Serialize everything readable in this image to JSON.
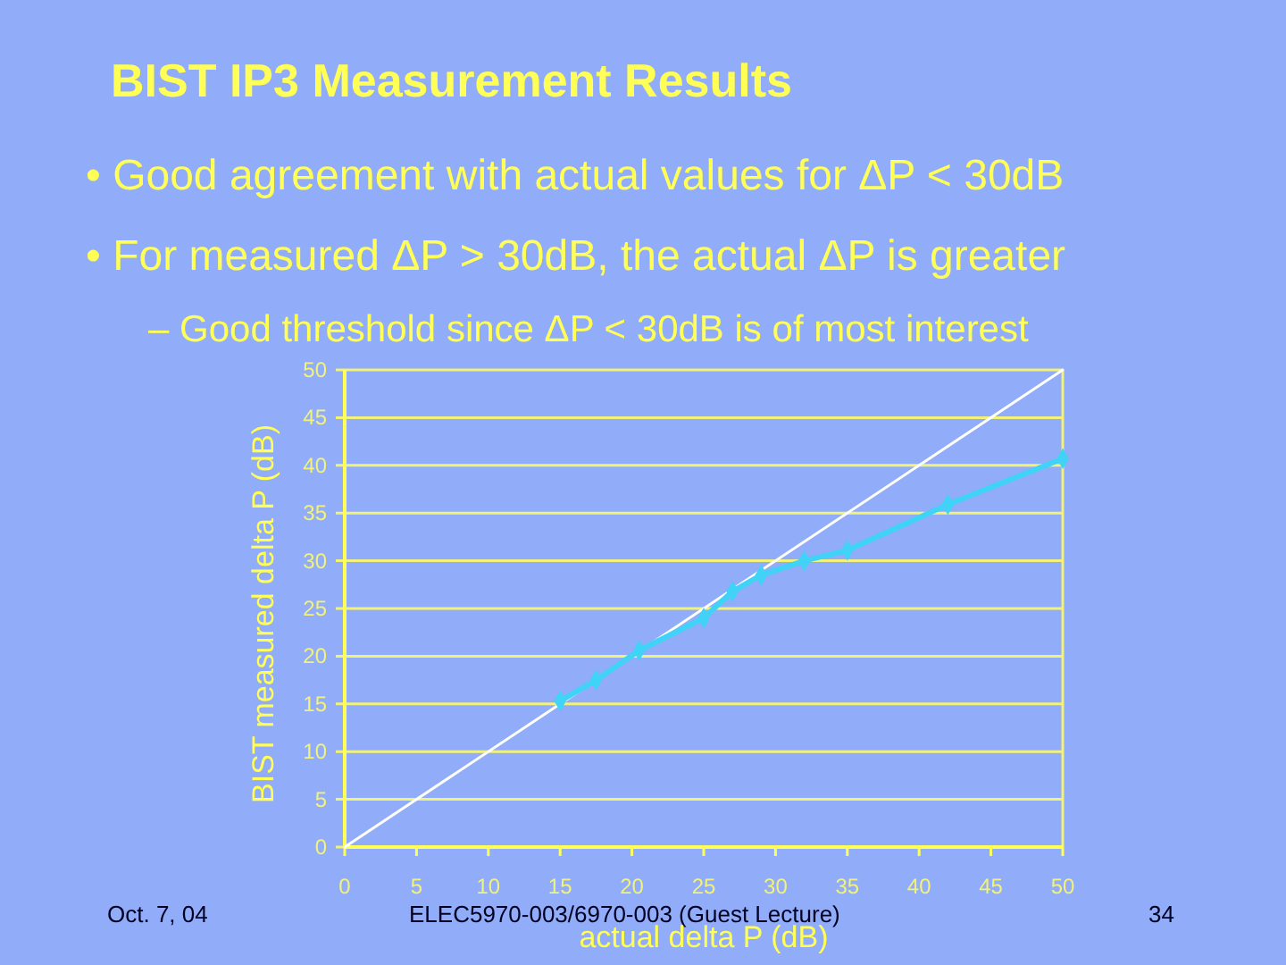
{
  "chart_data": {
    "type": "line",
    "title": "BIST IP3 Measurement Results",
    "xlabel": "actual delta P (dB)",
    "ylabel": "BIST measured delta P (dB)",
    "annotations": [
      "• Good agreement with actual values for ΔP < 30dB",
      "• For measured ΔP > 30dB, the actual ΔP is greater",
      "– Good threshold since ΔP < 30dB is of most interest",
      "Oct. 7, 04",
      "ELEC5970-003/6970-003 (Guest Lecture)",
      "34"
    ],
    "series": [
      {
        "color": "#ffffff",
        "x": [
          0,
          50
        ],
        "values": [
          0,
          50
        ],
        "marker": "none"
      },
      {
        "color": "#3fd3f7",
        "x": [
          15,
          17.5,
          20.5,
          25,
          27,
          29,
          32,
          35,
          42,
          50
        ],
        "values": [
          15.3,
          17.5,
          20.6,
          24,
          26.8,
          28.5,
          30,
          31.1,
          35.9,
          40.7
        ],
        "marker": "diamond"
      }
    ],
    "xlim": [
      0,
      50
    ],
    "ylim": [
      0,
      50
    ],
    "xticks": [
      0,
      5,
      10,
      15,
      20,
      25,
      30,
      35,
      40,
      45,
      50
    ],
    "yticks": [
      0,
      5,
      10,
      15,
      20,
      25,
      30,
      35,
      40,
      45,
      50
    ],
    "grid": "y"
  }
}
